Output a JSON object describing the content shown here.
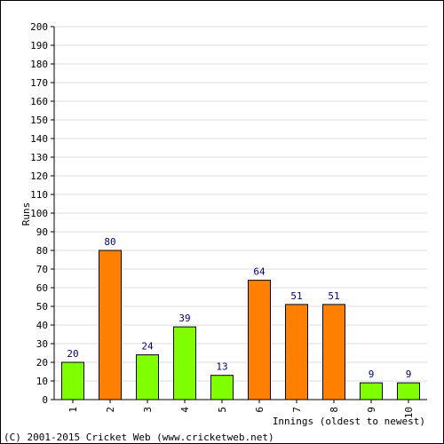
{
  "chart_data": {
    "type": "bar",
    "categories": [
      "1",
      "2",
      "3",
      "4",
      "5",
      "6",
      "7",
      "8",
      "9",
      "10"
    ],
    "values": [
      20,
      80,
      24,
      39,
      13,
      64,
      51,
      51,
      9,
      9
    ],
    "bar_colors": [
      "#80ff00",
      "#ff8000",
      "#80ff00",
      "#80ff00",
      "#80ff00",
      "#ff8000",
      "#ff8000",
      "#ff8000",
      "#80ff00",
      "#80ff00"
    ],
    "xlabel": "Innings (oldest to newest)",
    "ylabel": "Runs",
    "ylim": [
      0,
      200
    ],
    "ytick_step": 10,
    "grid": true,
    "data_labels": true
  },
  "footer": {
    "copyright": "(C) 2001-2015 Cricket Web (www.cricketweb.net)"
  },
  "colors": {
    "grid": "#dcdcdc",
    "axis": "#000000",
    "bar_outline": "#000000",
    "data_label": "#000080"
  }
}
